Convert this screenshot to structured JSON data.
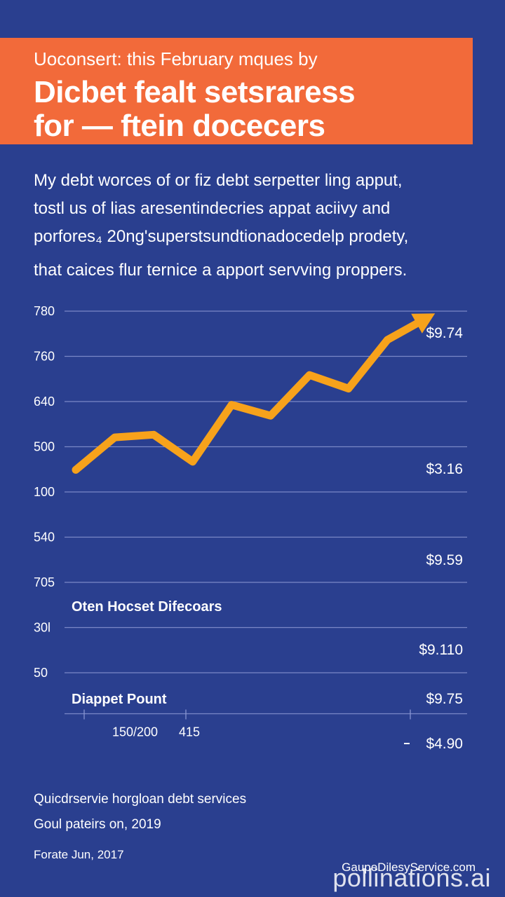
{
  "banner": {
    "kicker": "Uoconsert: this February mques by",
    "headline_line1": "Dicbet fealt setsraress",
    "headline_line2": "for — ftein docecers"
  },
  "intro": {
    "line1": "My debt worces of or fiz debt serpetter ling apput,",
    "line2": "tostl us of lias aresentindecries appat aciivy and",
    "line3": "porfores₄ 20ng'superstsundtionadocedelp prodety,",
    "line4": "that caices flur ternice a apport servving proppers."
  },
  "chart_data": {
    "type": "line",
    "y_tick_labels": [
      "780",
      "760",
      "640",
      "500",
      "100",
      "540",
      "705",
      "30l",
      "50"
    ],
    "x_tick_labels": [
      "150/200",
      "415"
    ],
    "right_labels": [
      "$9.74",
      "$3.16",
      "$9.59",
      "$9.110",
      "$9.75",
      "$4.90"
    ],
    "annotations": [
      "Oten Hocset Difecoars",
      "Diappet Pount"
    ],
    "series": [
      {
        "color": "#f7a21b",
        "points": [
          [
            0,
            520
          ],
          [
            1,
            580
          ],
          [
            2,
            585
          ],
          [
            3,
            535
          ],
          [
            4,
            640
          ],
          [
            5,
            620
          ],
          [
            6,
            695
          ],
          [
            7,
            670
          ],
          [
            8,
            760
          ],
          [
            9,
            800
          ]
        ]
      }
    ],
    "ylim": [
      0,
      800
    ],
    "grid": true
  },
  "footer": {
    "line1": "Quicdrservie horgloan debt services",
    "line2": "Goul pateirs on, 2019",
    "line3": "Forate Jun, 2017"
  },
  "credit": "GaupeDilesyService.com",
  "watermark": "pollinations.ai",
  "colors": {
    "background": "#2a3f8f",
    "banner": "#f26a3a",
    "line": "#f7a21b",
    "grid": "#8e9bd6"
  }
}
